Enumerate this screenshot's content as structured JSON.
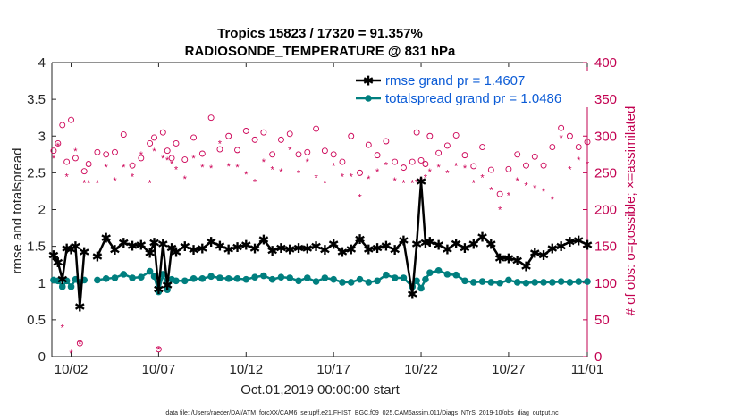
{
  "chart_data": {
    "type": "line",
    "title": "Tropics 15823 / 17320 = 91.357%",
    "subtitle": "RADIOSONDE_TEMPERATURE @ 831 hPa",
    "xlabel": "Oct.01,2019 00:00:00 start",
    "ylabel": "rmse and totalspread",
    "ylabel_right": "# of obs: o=possible; ×=assimilated",
    "footnote": "data file: /Users/raeder/DAI/ATM_forcXX/CAM6_setup/f.e21.FHIST_BGC.f09_025.CAM6assim.011/Diags_NTrS_2019-10/obs_diag_output.nc",
    "xlim": [
      0.4,
      31.0
    ],
    "ylim": [
      0,
      4
    ],
    "ylim_right": [
      0,
      400
    ],
    "x_ticks": [
      1.5,
      6.5,
      11.5,
      16.5,
      21.5,
      26.5,
      31.0
    ],
    "x_tick_labels": [
      "10/02",
      "10/07",
      "10/12",
      "10/17",
      "10/22",
      "10/27",
      "11/01"
    ],
    "y_ticks": [
      0,
      0.5,
      1,
      1.5,
      2,
      2.5,
      3,
      3.5,
      4
    ],
    "y_tick_labels": [
      "0",
      "0.5",
      "1",
      "1.5",
      "2",
      "2.5",
      "3",
      "3.5",
      "4"
    ],
    "y_ticks_right": [
      0,
      50,
      100,
      150,
      200,
      250,
      300,
      350,
      400
    ],
    "y_tick_labels_right": [
      "0",
      "50",
      "100",
      "150",
      "200",
      "250",
      "300",
      "350",
      "400"
    ],
    "legend": {
      "position": "top-right",
      "entries": [
        "rmse grand pr = 1.4607",
        "totalspread grand pr = 1.0486"
      ]
    },
    "colors": {
      "rmse": "#000000",
      "totalspread": "#007f7f",
      "obs": "#cc0055",
      "axis_left": "#262626",
      "axis_right": "#c20050",
      "legend_text": "#0b5bd6"
    },
    "x": [
      0.5,
      0.75,
      1.0,
      1.25,
      1.5,
      1.75,
      2.0,
      2.25,
      2.5,
      3.0,
      3.5,
      4.0,
      4.5,
      5.0,
      5.5,
      6.0,
      6.25,
      6.5,
      6.75,
      7.0,
      7.25,
      7.5,
      8.0,
      8.5,
      9.0,
      9.5,
      10.0,
      10.5,
      11.0,
      11.5,
      12.0,
      12.5,
      13.0,
      13.5,
      14.0,
      14.5,
      15.0,
      15.5,
      16.0,
      16.5,
      17.0,
      17.5,
      18.0,
      18.5,
      19.0,
      19.5,
      20.0,
      20.5,
      21.0,
      21.25,
      21.5,
      21.75,
      22.0,
      22.5,
      23.0,
      23.5,
      24.0,
      24.5,
      25.0,
      25.5,
      26.0,
      26.5,
      27.0,
      27.5,
      28.0,
      28.5,
      29.0,
      29.5,
      30.0,
      30.5,
      31.0
    ],
    "series": [
      {
        "name": "rmse",
        "marker": "*",
        "values": [
          1.38,
          1.28,
          1.05,
          1.47,
          1.46,
          1.5,
          0.68,
          1.42,
          null,
          1.36,
          1.62,
          1.45,
          1.55,
          1.51,
          1.52,
          1.41,
          1.55,
          0.92,
          1.53,
          0.97,
          1.48,
          1.42,
          1.5,
          1.45,
          1.47,
          1.56,
          1.51,
          1.46,
          1.49,
          1.52,
          1.47,
          1.59,
          1.44,
          1.48,
          1.46,
          1.48,
          1.47,
          1.5,
          1.45,
          1.53,
          1.42,
          1.46,
          1.6,
          1.46,
          1.48,
          1.51,
          1.45,
          1.58,
          0.85,
          1.53,
          2.38,
          1.55,
          1.56,
          1.52,
          1.46,
          1.54,
          1.48,
          1.53,
          1.63,
          1.53,
          1.34,
          1.34,
          1.31,
          1.23,
          1.41,
          1.38,
          1.47,
          1.5,
          1.56,
          1.58,
          1.52
        ]
      },
      {
        "name": "totalspread",
        "marker": "o",
        "values": [
          1.04,
          1.03,
          0.95,
          1.03,
          0.95,
          1.05,
          1.01,
          1.04,
          null,
          1.04,
          1.06,
          1.07,
          1.12,
          1.07,
          1.08,
          1.16,
          1.09,
          0.88,
          1.12,
          0.91,
          1.05,
          1.03,
          1.03,
          1.06,
          1.06,
          1.09,
          1.07,
          1.06,
          1.06,
          1.05,
          1.08,
          1.1,
          1.05,
          1.08,
          1.07,
          1.03,
          1.07,
          1.02,
          1.07,
          1.05,
          1.01,
          1.01,
          1.05,
          1.01,
          1.03,
          1.11,
          1.07,
          1.07,
          0.95,
          1.03,
          0.93,
          1.05,
          1.14,
          1.17,
          1.12,
          1.11,
          1.03,
          1.01,
          1.02,
          1.01,
          1.0,
          1.04,
          1.01,
          1.0,
          1.01,
          1.01,
          1.01,
          1.02,
          1.01,
          1.02,
          1.02
        ]
      },
      {
        "name": "obs_possible",
        "axis": "right",
        "marker": "circle-open",
        "values": [
          280,
          290,
          315,
          265,
          322,
          270,
          18,
          252,
          262,
          278,
          275,
          278,
          302,
          260,
          270,
          290,
          298,
          10,
          305,
          280,
          270,
          290,
          268,
          298,
          276,
          325,
          282,
          300,
          281,
          307,
          295,
          305,
          275,
          295,
          303,
          275,
          278,
          310,
          280,
          275,
          265,
          300,
          250,
          288,
          274,
          293,
          265,
          257,
          265,
          305,
          267,
          262,
          300,
          277,
          287,
          301,
          274,
          259,
          285,
          254,
          221,
          255,
          275,
          260,
          272,
          260,
          285,
          311,
          300,
          285,
          292
        ]
      },
      {
        "name": "obs_assimilated",
        "axis": "right",
        "marker": "asterisk",
        "values": [
          270,
          287,
          40,
          245,
          5,
          280,
          18,
          237,
          237,
          237,
          258,
          240,
          258,
          245,
          275,
          237,
          280,
          10,
          270,
          268,
          263,
          255,
          242,
          270,
          258,
          257,
          290,
          259,
          258,
          248,
          238,
          265,
          255,
          252,
          282,
          250,
          265,
          244,
          237,
          260,
          245,
          245,
          217,
          242,
          252,
          261,
          240,
          237,
          237,
          238,
          240,
          244,
          252,
          258,
          250,
          260,
          257,
          237,
          244,
          227,
          200,
          220,
          240,
          233,
          230,
          225,
          214,
          298,
          255,
          268,
          262
        ]
      }
    ]
  }
}
